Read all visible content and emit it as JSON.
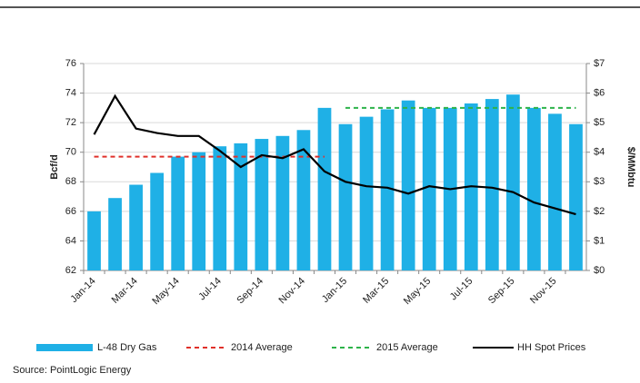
{
  "chart_data": {
    "type": "bar",
    "categories": [
      "Jan-14",
      null,
      "Mar-14",
      null,
      "May-14",
      null,
      "Jul-14",
      null,
      "Sep-14",
      null,
      "Nov-14",
      null,
      "Jan-15",
      null,
      "Mar-15",
      null,
      "May-15",
      null,
      "Jul-15",
      null,
      "Sep-15",
      null,
      "Nov-15",
      null
    ],
    "series": [
      {
        "name": "L-48 Dry Gas",
        "type": "bar",
        "color": "#1fb0e6",
        "values": [
          66.0,
          66.9,
          67.8,
          68.6,
          69.7,
          70.0,
          70.4,
          70.6,
          70.9,
          71.1,
          71.5,
          73.0,
          71.9,
          72.4,
          72.9,
          73.5,
          73.0,
          73.0,
          73.3,
          73.6,
          73.9,
          73.0,
          72.6,
          71.9
        ]
      },
      {
        "name": "2014 Average",
        "type": "dashed",
        "color": "#e0302a",
        "values": [
          69.7,
          69.7,
          69.7,
          69.7,
          69.7,
          69.7,
          69.7,
          69.7,
          69.7,
          69.7,
          69.7,
          69.7,
          null,
          null,
          null,
          null,
          null,
          null,
          null,
          null,
          null,
          null,
          null,
          null
        ]
      },
      {
        "name": "2015 Average",
        "type": "dashed",
        "color": "#2db34a",
        "values": [
          null,
          null,
          null,
          null,
          null,
          null,
          null,
          null,
          null,
          null,
          null,
          null,
          73.0,
          73.0,
          73.0,
          73.0,
          73.0,
          73.0,
          73.0,
          73.0,
          73.0,
          73.0,
          73.0,
          73.0
        ]
      },
      {
        "name": "HH Spot Prices",
        "type": "line",
        "axis": "y2",
        "color": "#000000",
        "values": [
          4.6,
          5.9,
          4.8,
          4.65,
          4.55,
          4.55,
          4.05,
          3.5,
          3.9,
          3.8,
          4.1,
          3.35,
          3.0,
          2.85,
          2.8,
          2.6,
          2.85,
          2.75,
          2.85,
          2.8,
          2.65,
          2.3,
          2.1,
          1.9
        ]
      }
    ],
    "ylabel": "Bcf/d",
    "y2label": "$/MMbtu",
    "ylim": [
      62,
      76
    ],
    "yticks": [
      62,
      64,
      66,
      68,
      70,
      72,
      74,
      76
    ],
    "y2lim": [
      0,
      7
    ],
    "y2ticks": [
      {
        "value": 0,
        "label": "$0"
      },
      {
        "value": 1,
        "label": "$1"
      },
      {
        "value": 2,
        "label": "$2"
      },
      {
        "value": 3,
        "label": "$3"
      },
      {
        "value": 4,
        "label": "$4"
      },
      {
        "value": 5,
        "label": "$5"
      },
      {
        "value": 6,
        "label": "$6"
      },
      {
        "value": 7,
        "label": "$7"
      }
    ],
    "grid": true,
    "legend": "bottom",
    "source": "Source:  PointLogic Energy"
  }
}
